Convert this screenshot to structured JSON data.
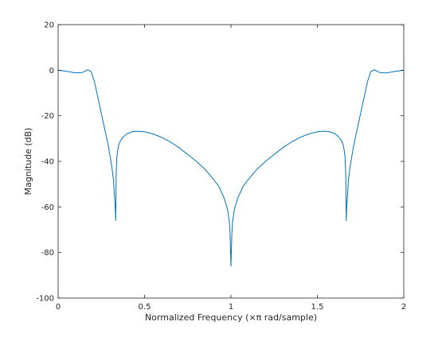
{
  "chart_data": {
    "type": "line",
    "title": "",
    "xlabel": "Normalized Frequency  (×π rad/sample)",
    "ylabel": "Magnitude (dB)",
    "xlim": [
      0,
      2
    ],
    "ylim": [
      -100,
      20
    ],
    "xticks": [
      0,
      0.5,
      1,
      1.5,
      2
    ],
    "xtick_labels": [
      "0",
      "0.5",
      "1",
      "1.5",
      "2"
    ],
    "yticks": [
      -100,
      -80,
      -60,
      -40,
      -20,
      0,
      20
    ],
    "ytick_labels": [
      "-100",
      "-80",
      "-60",
      "-40",
      "-20",
      "0",
      "20"
    ],
    "grid": false,
    "line_color": "#0072bd",
    "series": [
      {
        "x": [
          0,
          0.05,
          0.1,
          0.14,
          0.17,
          0.19,
          0.21,
          0.23,
          0.25,
          0.27,
          0.29,
          0.31,
          0.32,
          0.325,
          0.33,
          0.333,
          0.336,
          0.34,
          0.345,
          0.35,
          0.36,
          0.38,
          0.4,
          0.43,
          0.46,
          0.5,
          0.55,
          0.6,
          0.65,
          0.7,
          0.75,
          0.8,
          0.85,
          0.9,
          0.93,
          0.96,
          0.98,
          0.99,
          0.995,
          1.0,
          1.005,
          1.01,
          1.02,
          1.04,
          1.07,
          1.1,
          1.15,
          1.2,
          1.25,
          1.3,
          1.35,
          1.4,
          1.45,
          1.5,
          1.54,
          1.57,
          1.6,
          1.62,
          1.64,
          1.65,
          1.655,
          1.66,
          1.664,
          1.667,
          1.67,
          1.675,
          1.68,
          1.69,
          1.71,
          1.73,
          1.75,
          1.77,
          1.79,
          1.81,
          1.83,
          1.86,
          1.9,
          1.95,
          2.0
        ],
        "y": [
          0,
          -0.5,
          -1.2,
          -1.0,
          0.2,
          -0.5,
          -5,
          -12,
          -19,
          -26,
          -33,
          -42,
          -48,
          -54,
          -60,
          -66,
          -45,
          -38,
          -35,
          -33,
          -31,
          -29,
          -27.8,
          -27.0,
          -26.8,
          -27.0,
          -28.0,
          -29.5,
          -31.5,
          -34,
          -37,
          -40,
          -43.5,
          -48,
          -51,
          -56,
          -61,
          -66,
          -72,
          -86,
          -72,
          -66,
          -61,
          -56,
          -51,
          -48,
          -43.5,
          -40,
          -37,
          -34,
          -31.5,
          -29.5,
          -28.0,
          -27.0,
          -26.8,
          -27.0,
          -27.8,
          -29,
          -31,
          -33,
          -35,
          -38,
          -45,
          -66,
          -60,
          -54,
          -48,
          -42,
          -33,
          -26,
          -19,
          -12,
          -5,
          -0.5,
          0.2,
          -1.0,
          -1.2,
          -0.5,
          0
        ]
      }
    ]
  }
}
